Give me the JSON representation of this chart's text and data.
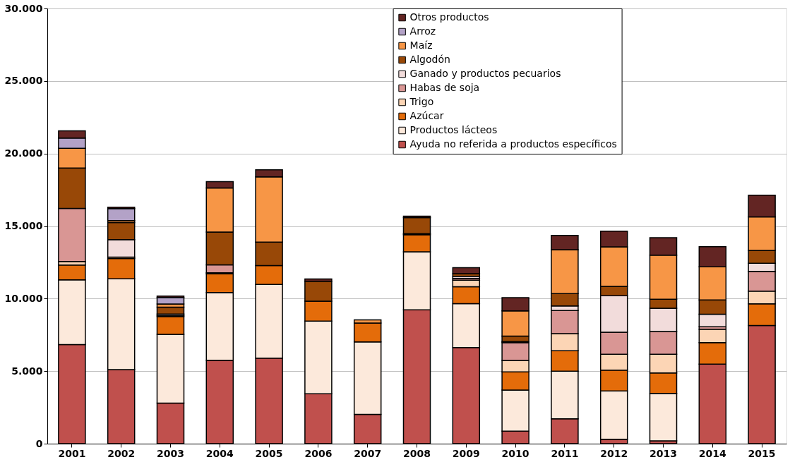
{
  "chart_data": {
    "type": "bar",
    "stacked": true,
    "legend": "top right",
    "grid": "y",
    "categories": [
      "2001",
      "2002",
      "2003",
      "2004",
      "2005",
      "2006",
      "2007",
      "2008",
      "2009",
      "2010",
      "2011",
      "2012",
      "2013",
      "2014",
      "2015"
    ],
    "ylim": [
      0,
      30000
    ],
    "yticks": [
      {
        "value": 0,
        "label": "0"
      },
      {
        "value": 5000,
        "label": "5.000"
      },
      {
        "value": 10000,
        "label": "10.000"
      },
      {
        "value": 15000,
        "label": "15.000"
      },
      {
        "value": 20000,
        "label": "20.000"
      },
      {
        "value": 25000,
        "label": "25.000"
      },
      {
        "value": 30000,
        "label": "30.000"
      }
    ],
    "series": [
      {
        "name": "Ayuda no referida a productos específicos",
        "color": "#c0504d",
        "values": [
          6830,
          5100,
          2790,
          5750,
          5890,
          3440,
          2020,
          9230,
          6630,
          860,
          1720,
          300,
          200,
          5480,
          8140
        ]
      },
      {
        "name": "Productos lácteos",
        "color": "#fce9db",
        "values": [
          4460,
          6270,
          4750,
          4670,
          5090,
          5010,
          4990,
          3990,
          3020,
          2840,
          3270,
          3330,
          3270,
          null,
          null
        ]
      },
      {
        "name": "Azúcar",
        "color": "#e46c0a",
        "values": [
          1020,
          1390,
          1220,
          1280,
          1300,
          1370,
          1300,
          1180,
          1170,
          1250,
          1420,
          1440,
          1400,
          1490,
          1500
        ]
      },
      {
        "name": "Trigo",
        "color": "#fcd5b5",
        "values": [
          250,
          100,
          80,
          80,
          null,
          null,
          null,
          80,
          450,
          790,
          1170,
          1090,
          1290,
          920,
          870
        ]
      },
      {
        "name": "Habas de soja",
        "color": "#d99694",
        "values": [
          3650,
          null,
          null,
          550,
          null,
          null,
          null,
          null,
          120,
          1220,
          1600,
          1520,
          1570,
          170,
          1370
        ]
      },
      {
        "name": "Ganado y productos pecuarios",
        "color": "#f2dcdb",
        "values": [
          null,
          1200,
          100,
          null,
          null,
          null,
          null,
          null,
          150,
          80,
          310,
          2520,
          1600,
          860,
          560
        ]
      },
      {
        "name": "Algodón",
        "color": "#984807",
        "values": [
          2790,
          1180,
          470,
          2260,
          1610,
          1370,
          null,
          1100,
          180,
          380,
          860,
          640,
          630,
          990,
          880
        ]
      },
      {
        "name": "Maíz",
        "color": "#f79646",
        "values": [
          1360,
          140,
          220,
          3040,
          4500,
          null,
          220,
          null,
          null,
          1730,
          3020,
          2720,
          3040,
          2280,
          2310
        ]
      },
      {
        "name": "Arroz",
        "color": "#b3a2c7",
        "values": [
          710,
          820,
          450,
          null,
          null,
          null,
          null,
          null,
          null,
          null,
          null,
          null,
          null,
          null,
          null
        ]
      },
      {
        "name": "Otros productos",
        "color": "#632523",
        "values": [
          490,
          100,
          100,
          430,
          490,
          160,
          null,
          100,
          410,
          910,
          990,
          1090,
          1200,
          1390,
          1500
        ]
      }
    ]
  }
}
